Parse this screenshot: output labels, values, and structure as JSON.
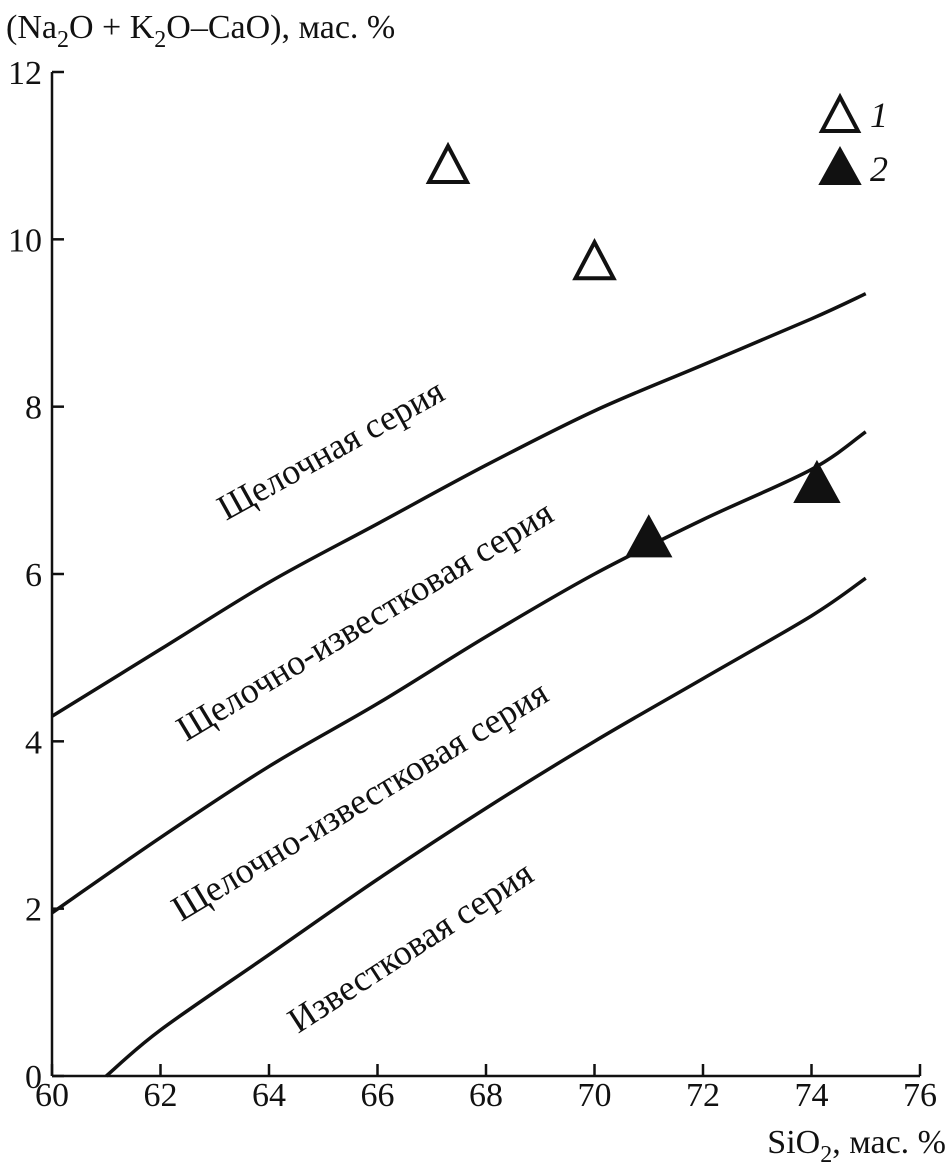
{
  "chart_data": {
    "type": "scatter",
    "ylabel": "(Na2O + K2O–CaO), мас. %",
    "ylabel_parts": {
      "p1": "(Na",
      "s1": "2",
      "p2": "O + K",
      "s2": "2",
      "p3": "O–CaO), мас. %"
    },
    "xlabel": "SiO2, мас. %",
    "xlabel_parts": {
      "p1": "SiO",
      "s1": "2",
      "p2": ", мас. %"
    },
    "xlim": [
      60,
      76
    ],
    "ylim": [
      0,
      12
    ],
    "xticks": [
      60,
      62,
      64,
      66,
      68,
      70,
      72,
      74,
      76
    ],
    "yticks": [
      0,
      2,
      4,
      6,
      8,
      10,
      12
    ],
    "grid": false,
    "legend_position": "top-right",
    "boundaries": [
      {
        "name": "alkalic / alkali-calcic",
        "points": [
          [
            60,
            4.3
          ],
          [
            62,
            5.1
          ],
          [
            64,
            5.9
          ],
          [
            66,
            6.6
          ],
          [
            68,
            7.3
          ],
          [
            70,
            7.95
          ],
          [
            72,
            8.5
          ],
          [
            74,
            9.05
          ],
          [
            75,
            9.35
          ]
        ]
      },
      {
        "name": "alkali-calcic / calc-alkalic",
        "points": [
          [
            60,
            1.95
          ],
          [
            62,
            2.85
          ],
          [
            64,
            3.7
          ],
          [
            66,
            4.45
          ],
          [
            68,
            5.25
          ],
          [
            70,
            6.0
          ],
          [
            72,
            6.65
          ],
          [
            74,
            7.25
          ],
          [
            75,
            7.7
          ]
        ]
      },
      {
        "name": "calc-alkalic / calcic",
        "points": [
          [
            61,
            0
          ],
          [
            62,
            0.55
          ],
          [
            64,
            1.45
          ],
          [
            66,
            2.35
          ],
          [
            68,
            3.2
          ],
          [
            70,
            4.0
          ],
          [
            72,
            4.75
          ],
          [
            74,
            5.5
          ],
          [
            75,
            5.95
          ]
        ]
      }
    ],
    "region_labels": [
      "Щелочная серия",
      "Щелочно-известковая серия",
      "Щелочно-известковая серия",
      "Известковая серия"
    ],
    "series": [
      {
        "name": "1",
        "marker": "open-triangle",
        "points": [
          [
            67.3,
            10.9
          ],
          [
            70.0,
            9.75
          ]
        ]
      },
      {
        "name": "2",
        "marker": "filled-triangle",
        "points": [
          [
            71.0,
            6.45
          ],
          [
            74.1,
            7.1
          ]
        ]
      }
    ]
  }
}
